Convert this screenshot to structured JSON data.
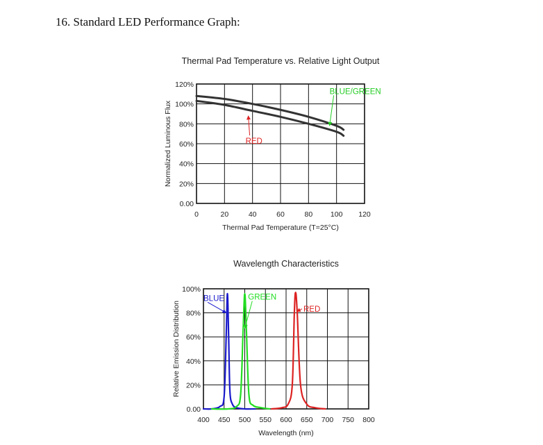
{
  "heading": "16. Standard LED Performance Graph:",
  "chart_data": [
    {
      "type": "line",
      "title": "Thermal Pad Temperature vs. Relative Light Output",
      "xlabel": "Thermal Pad Temperature (T=25°C)",
      "ylabel": "Normalized Luminous Flux",
      "xlim": [
        0,
        120
      ],
      "ylim": [
        0,
        120
      ],
      "x_ticks": [
        "0",
        "20",
        "40",
        "60",
        "80",
        "100",
        "120"
      ],
      "y_ticks": [
        "0.00",
        "20%",
        "40%",
        "60%",
        "80%",
        "100%",
        "120%"
      ],
      "grid": true,
      "series": [
        {
          "name": "BLUE/GREEN",
          "color": "#333333",
          "x": [
            0,
            20,
            40,
            60,
            80,
            100,
            105
          ],
          "y": [
            108,
            105,
            100,
            94,
            87,
            78,
            74
          ]
        },
        {
          "name": "RED",
          "color": "#333333",
          "x": [
            0,
            20,
            40,
            60,
            80,
            100,
            105
          ],
          "y": [
            103,
            99,
            93,
            87,
            80,
            72,
            68
          ]
        }
      ],
      "annotations": [
        {
          "text": "BLUE/GREEN",
          "color": "#22cc22",
          "x": 95,
          "y": 110,
          "target_x": 95,
          "target_y": 78
        },
        {
          "text": "RED",
          "color": "#e02020",
          "x": 35,
          "y": 60,
          "target_x": 37,
          "target_y": 88
        }
      ]
    },
    {
      "type": "line",
      "title": "Wavelength Characteristics",
      "xlabel": "Wavelength (nm)",
      "ylabel": "Relative Emission Distribution",
      "xlim": [
        400,
        800
      ],
      "ylim": [
        0,
        100
      ],
      "x_ticks": [
        "400",
        "450",
        "500",
        "550",
        "600",
        "650",
        "700",
        "750",
        "800"
      ],
      "y_ticks": [
        "0.00",
        "20%",
        "40%",
        "60%",
        "80%",
        "100%"
      ],
      "grid": true,
      "series": [
        {
          "name": "BLUE",
          "color": "#1a1acc",
          "x": [
            400,
            420,
            440,
            450,
            455,
            458,
            461,
            464,
            470,
            480,
            500,
            525
          ],
          "y": [
            0,
            0,
            2,
            10,
            60,
            96,
            60,
            15,
            4,
            1,
            0,
            0
          ]
        },
        {
          "name": "GREEN",
          "color": "#22dd22",
          "x": [
            420,
            460,
            480,
            490,
            496,
            500,
            504,
            510,
            520,
            540,
            560
          ],
          "y": [
            0,
            0,
            2,
            12,
            65,
            96,
            65,
            12,
            3,
            1,
            0
          ]
        },
        {
          "name": "RED",
          "color": "#dd2222",
          "x": [
            565,
            590,
            605,
            615,
            620,
            623,
            627,
            635,
            650,
            670,
            695
          ],
          "y": [
            0,
            1,
            4,
            20,
            80,
            97,
            80,
            20,
            4,
            1,
            0
          ]
        }
      ],
      "annotations": [
        {
          "text": "BLUE",
          "color": "#1a1acc",
          "x": 400,
          "y": 90,
          "target_x": 455,
          "target_y": 80
        },
        {
          "text": "GREEN",
          "color": "#22dd22",
          "x": 508,
          "y": 91,
          "target_x": 500,
          "target_y": 67
        },
        {
          "text": "RED",
          "color": "#dd2222",
          "x": 642,
          "y": 81,
          "target_x": 626,
          "target_y": 81
        }
      ]
    }
  ]
}
